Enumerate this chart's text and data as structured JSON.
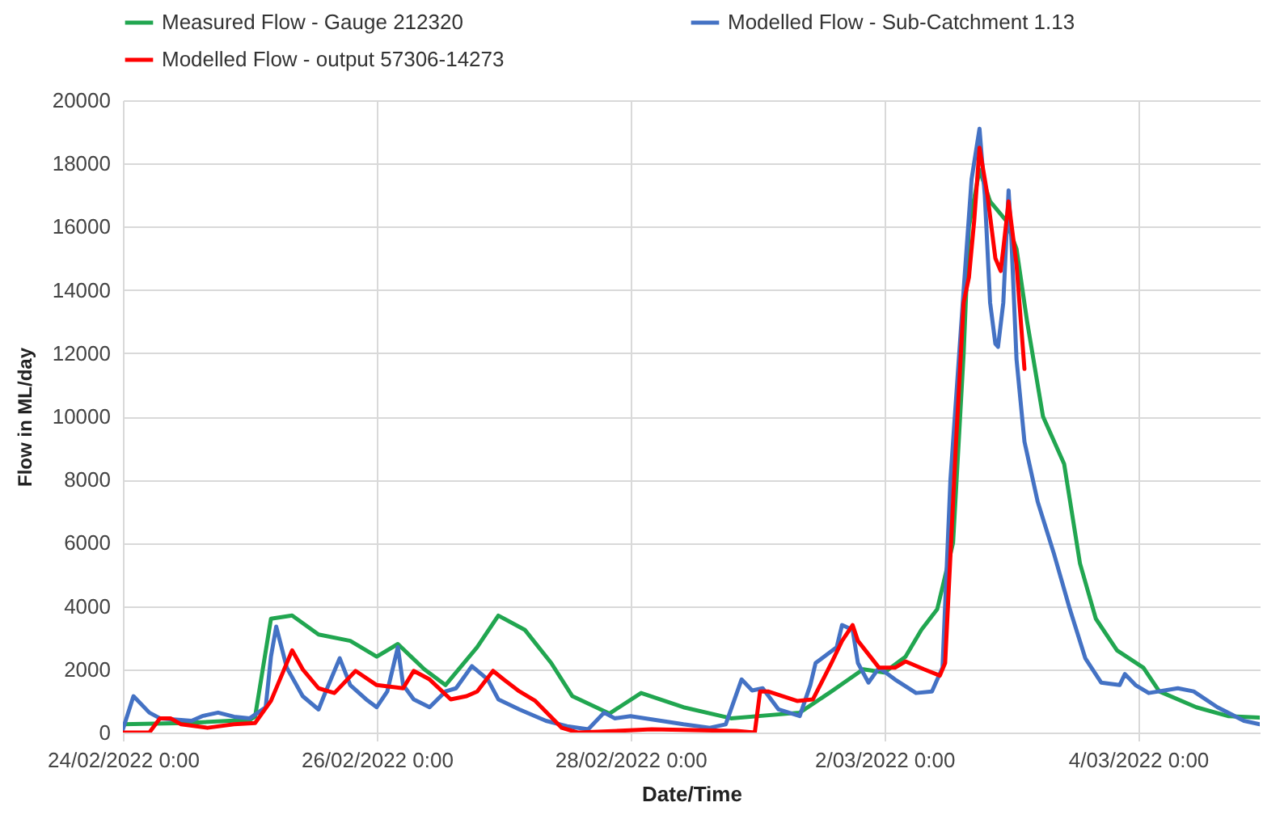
{
  "chart_data": {
    "type": "line",
    "xlabel": "Date/Time",
    "ylabel": "Flow in ML/day",
    "xlim": [
      "2022-02-24T00:00",
      "2022-03-04T23:00"
    ],
    "xticks": [
      {
        "value": "2022-02-24T00:00",
        "label": "24/02/2022 0:00"
      },
      {
        "value": "2022-02-26T00:00",
        "label": "26/02/2022 0:00"
      },
      {
        "value": "2022-02-28T00:00",
        "label": "28/02/2022 0:00"
      },
      {
        "value": "2022-03-02T00:00",
        "label": "2/03/2022 0:00"
      },
      {
        "value": "2022-03-04T00:00",
        "label": "4/03/2022 0:00"
      }
    ],
    "ylim": [
      0,
      20000
    ],
    "yticks": [
      0,
      2000,
      4000,
      6000,
      8000,
      10000,
      12000,
      14000,
      16000,
      18000,
      20000
    ],
    "grid": true,
    "legend": "top",
    "series": [
      {
        "name": "Measured Flow - Gauge 212320",
        "color": "#21a650",
        "x": [
          "2022-02-24T00:00",
          "2022-02-24T12:00",
          "2022-02-25T00:00",
          "2022-02-25T01:00",
          "2022-02-25T04:00",
          "2022-02-25T08:00",
          "2022-02-25T13:00",
          "2022-02-25T19:00",
          "2022-02-26T00:00",
          "2022-02-26T04:00",
          "2022-02-26T09:00",
          "2022-02-26T13:00",
          "2022-02-26T19:00",
          "2022-02-26T23:00",
          "2022-02-27T04:00",
          "2022-02-27T09:00",
          "2022-02-27T13:00",
          "2022-02-27T20:00",
          "2022-02-28T02:00",
          "2022-02-28T10:00",
          "2022-02-28T19:00",
          "2022-03-01T08:00",
          "2022-03-01T14:00",
          "2022-03-01T20:00",
          "2022-03-02T00:00",
          "2022-03-02T04:00",
          "2022-03-02T07:00",
          "2022-03-02T10:00",
          "2022-03-02T13:00",
          "2022-03-02T15:00",
          "2022-03-02T16:00",
          "2022-03-02T18:00",
          "2022-03-02T20:00",
          "2022-03-02T23:00",
          "2022-03-03T01:00",
          "2022-03-03T03:00",
          "2022-03-03T06:00",
          "2022-03-03T10:00",
          "2022-03-03T13:00",
          "2022-03-03T16:00",
          "2022-03-03T20:00",
          "2022-03-04T01:00",
          "2022-03-04T04:00",
          "2022-03-04T11:00",
          "2022-03-04T17:00",
          "2022-03-04T23:00"
        ],
        "values": [
          260,
          300,
          400,
          500,
          3600,
          3700,
          3100,
          2900,
          2400,
          2800,
          2000,
          1500,
          2700,
          3700,
          3250,
          2200,
          1150,
          600,
          1250,
          800,
          450,
          630,
          1300,
          2000,
          1900,
          2400,
          3250,
          3900,
          6000,
          12000,
          16000,
          17800,
          16800,
          16200,
          15300,
          13000,
          10000,
          8500,
          5350,
          3600,
          2600,
          2050,
          1300,
          800,
          520,
          470
        ]
      },
      {
        "name": "Modelled Flow - Sub-Catchment 1.13",
        "color": "#4472c4",
        "x": [
          "2022-02-24T00:00",
          "2022-02-24T02:00",
          "2022-02-24T05:00",
          "2022-02-24T07:00",
          "2022-02-24T13:00",
          "2022-02-24T15:00",
          "2022-02-24T18:00",
          "2022-02-24T21:00",
          "2022-02-25T00:00",
          "2022-02-25T03:00",
          "2022-02-25T04:00",
          "2022-02-25T05:00",
          "2022-02-25T07:00",
          "2022-02-25T10:00",
          "2022-02-25T13:00",
          "2022-02-25T14:00",
          "2022-02-25T17:00",
          "2022-02-25T19:00",
          "2022-02-25T22:00",
          "2022-02-26T00:00",
          "2022-02-26T02:00",
          "2022-02-26T04:00",
          "2022-02-26T05:00",
          "2022-02-26T07:00",
          "2022-02-26T10:00",
          "2022-02-26T13:00",
          "2022-02-26T15:00",
          "2022-02-26T18:00",
          "2022-02-26T21:00",
          "2022-02-26T23:00",
          "2022-02-27T03:00",
          "2022-02-27T08:00",
          "2022-02-27T12:00",
          "2022-02-27T16:00",
          "2022-02-27T19:00",
          "2022-02-27T21:00",
          "2022-02-28T00:00",
          "2022-02-28T10:00",
          "2022-02-28T15:00",
          "2022-02-28T18:00",
          "2022-02-28T21:00",
          "2022-02-28T23:00",
          "2022-03-01T01:00",
          "2022-03-01T04:00",
          "2022-03-01T08:00",
          "2022-03-01T10:00",
          "2022-03-01T11:00",
          "2022-03-01T13:00",
          "2022-03-01T15:00",
          "2022-03-01T16:00",
          "2022-03-01T18:00",
          "2022-03-01T19:00",
          "2022-03-01T21:00",
          "2022-03-01T23:00",
          "2022-03-02T02:00",
          "2022-03-02T06:00",
          "2022-03-02T09:00",
          "2022-03-02T11:00",
          "2022-03-02T12:30",
          "2022-03-02T15:00",
          "2022-03-02T16:30",
          "2022-03-02T18:00",
          "2022-03-02T19:00",
          "2022-03-02T20:00",
          "2022-03-02T21:00",
          "2022-03-02T21:30",
          "2022-03-02T22:30",
          "2022-03-02T23:30",
          "2022-03-03T00:00",
          "2022-03-03T01:00",
          "2022-03-03T02:30",
          "2022-03-03T05:00",
          "2022-03-03T08:00",
          "2022-03-03T11:00",
          "2022-03-03T14:00",
          "2022-03-03T17:00",
          "2022-03-03T20:30",
          "2022-03-03T21:30",
          "2022-03-03T23:30",
          "2022-03-04T02:00",
          "2022-03-04T07:30",
          "2022-03-04T10:30",
          "2022-03-04T15:00",
          "2022-03-04T20:00",
          "2022-03-04T23:00"
        ],
        "values": [
          100,
          1150,
          630,
          450,
          370,
          520,
          630,
          500,
          450,
          800,
          2400,
          3350,
          2050,
          1150,
          730,
          1150,
          2350,
          1500,
          1050,
          800,
          1300,
          2700,
          1500,
          1050,
          800,
          1300,
          1400,
          2100,
          1680,
          1050,
          730,
          370,
          200,
          100,
          630,
          450,
          520,
          260,
          150,
          260,
          1680,
          1330,
          1400,
          730,
          520,
          1500,
          2200,
          2450,
          2700,
          3400,
          3250,
          2200,
          1580,
          2050,
          1680,
          1250,
          1300,
          2050,
          8000,
          14000,
          17500,
          19100,
          17000,
          13600,
          12300,
          12200,
          13600,
          17150,
          15700,
          11800,
          9200,
          7300,
          5700,
          3950,
          2350,
          1580,
          1500,
          1850,
          1500,
          1250,
          1400,
          1300,
          800,
          370,
          260
        ]
      },
      {
        "name": "Modelled Flow - output 57306-14273",
        "color": "#ff0000",
        "x": [
          "2022-02-24T00:00",
          "2022-02-24T05:00",
          "2022-02-24T07:00",
          "2022-02-24T09:00",
          "2022-02-24T11:00",
          "2022-02-24T16:00",
          "2022-02-24T21:00",
          "2022-02-25T01:00",
          "2022-02-25T04:00",
          "2022-02-25T08:00",
          "2022-02-25T10:00",
          "2022-02-25T13:00",
          "2022-02-25T16:00",
          "2022-02-25T20:00",
          "2022-02-26T00:00",
          "2022-02-26T05:00",
          "2022-02-26T07:00",
          "2022-02-26T10:00",
          "2022-02-26T14:00",
          "2022-02-26T17:00",
          "2022-02-26T19:00",
          "2022-02-26T22:00",
          "2022-02-27T00:00",
          "2022-02-27T03:00",
          "2022-02-27T06:00",
          "2022-02-27T11:00",
          "2022-02-27T14:00",
          "2022-02-28T04:00",
          "2022-02-28T20:00",
          "2022-02-28T23:30",
          "2022-03-01T00:30",
          "2022-03-01T02:00",
          "2022-03-01T07:30",
          "2022-03-01T10:30",
          "2022-03-01T14:00",
          "2022-03-01T16:00",
          "2022-03-01T18:00",
          "2022-03-01T19:00",
          "2022-03-01T23:00",
          "2022-03-02T02:00",
          "2022-03-02T04:00",
          "2022-03-02T07:30",
          "2022-03-02T10:30",
          "2022-03-02T11:30",
          "2022-03-02T13:30",
          "2022-03-02T15:00",
          "2022-03-02T16:00",
          "2022-03-02T17:00",
          "2022-03-02T18:00",
          "2022-03-02T19:30",
          "2022-03-02T21:00",
          "2022-03-02T22:00",
          "2022-03-02T22:30",
          "2022-03-02T23:30",
          "2022-03-03T01:00",
          "2022-03-03T02:30"
        ],
        "values": [
          0,
          0,
          450,
          450,
          260,
          150,
          260,
          300,
          1000,
          2600,
          2000,
          1400,
          1250,
          1950,
          1500,
          1400,
          1950,
          1680,
          1050,
          1150,
          1300,
          1950,
          1680,
          1300,
          1000,
          150,
          0,
          100,
          50,
          0,
          1300,
          1300,
          1000,
          1050,
          2200,
          2900,
          3400,
          2900,
          2050,
          2050,
          2250,
          2000,
          1800,
          2200,
          9000,
          13600,
          14400,
          16200,
          18500,
          17000,
          15000,
          14600,
          15300,
          16800,
          14800,
          11500
        ]
      }
    ]
  }
}
